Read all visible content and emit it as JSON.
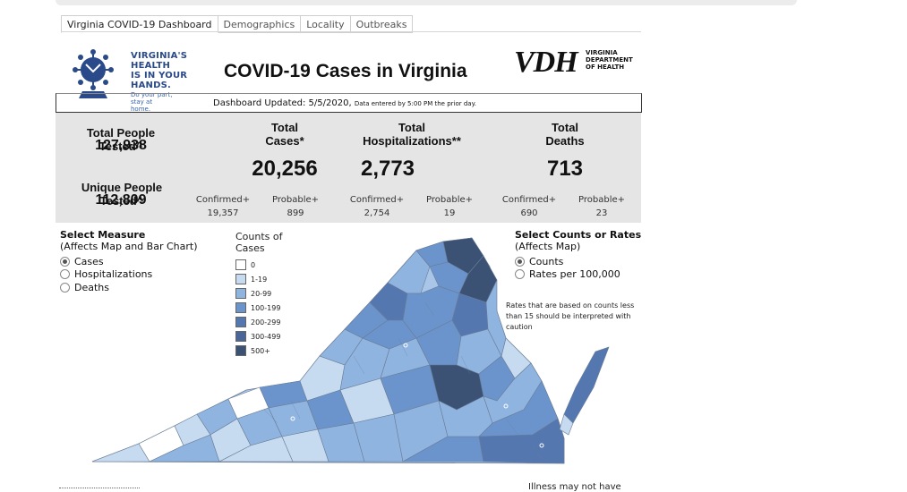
{
  "tabs": [
    {
      "label": "Virginia COVID-19 Dashboard"
    },
    {
      "label": "Demographics"
    },
    {
      "label": "Locality"
    },
    {
      "label": "Outbreaks"
    }
  ],
  "logo": {
    "lines": [
      "VIRGINIA'S",
      "HEALTH",
      "IS IN YOUR",
      "HANDS."
    ],
    "tagline1": "Do your part,",
    "tagline2": "stay at home."
  },
  "title": "COVID-19 Cases in Virginia",
  "vdh": {
    "abbr": "VDH",
    "line1": "VIRGINIA",
    "line2": "DEPARTMENT",
    "line3": "OF HEALTH"
  },
  "updated": {
    "main": "Dashboard Updated: 5/5/2020, ",
    "note": "Data entered by 5:00 PM the prior day."
  },
  "stats": {
    "total_tested_label": "Total People Tested^",
    "total_tested": "127,938",
    "unique_tested_label": "Unique People Tested^",
    "unique_tested": "112,809",
    "cases": {
      "label1": "Total",
      "label2": "Cases*",
      "value": "20,256",
      "confirmed_label": "Confirmed+",
      "confirmed": "19,357",
      "probable_label": "Probable+",
      "probable": "899"
    },
    "hosp": {
      "label1": "Total",
      "label2": "Hospitalizations**",
      "value": "2,773",
      "confirmed_label": "Confirmed+",
      "confirmed": "2,754",
      "probable_label": "Probable+",
      "probable": "19"
    },
    "deaths": {
      "label1": "Total",
      "label2": "Deaths",
      "value": "713",
      "confirmed_label": "Confirmed+",
      "confirmed": "690",
      "probable_label": "Probable+",
      "probable": "23"
    }
  },
  "measure": {
    "title": "Select Measure",
    "subtitle": "(Affects Map and Bar Chart)",
    "options": [
      "Cases",
      "Hospitalizations",
      "Deaths"
    ],
    "selected": "Cases"
  },
  "legend": {
    "title1": "Counts of",
    "title2": "Cases",
    "items": [
      {
        "label": "0",
        "color": "#ffffff"
      },
      {
        "label": "1-19",
        "color": "#c6daf0"
      },
      {
        "label": "20-99",
        "color": "#8fb4e0"
      },
      {
        "label": "100-199",
        "color": "#6b94cc"
      },
      {
        "label": "200-299",
        "color": "#5577b0"
      },
      {
        "label": "300-499",
        "color": "#4a6698"
      },
      {
        "label": "500+",
        "color": "#3b5275"
      }
    ]
  },
  "counts": {
    "title": "Select Counts or Rates",
    "subtitle": "(Affects Map)",
    "options": [
      "Counts",
      "Rates per 100,000"
    ],
    "selected": "Counts"
  },
  "rates_note": "Rates that are based on counts less than 15 should be interpreted with caution",
  "footer_note": "Illness may not have"
}
